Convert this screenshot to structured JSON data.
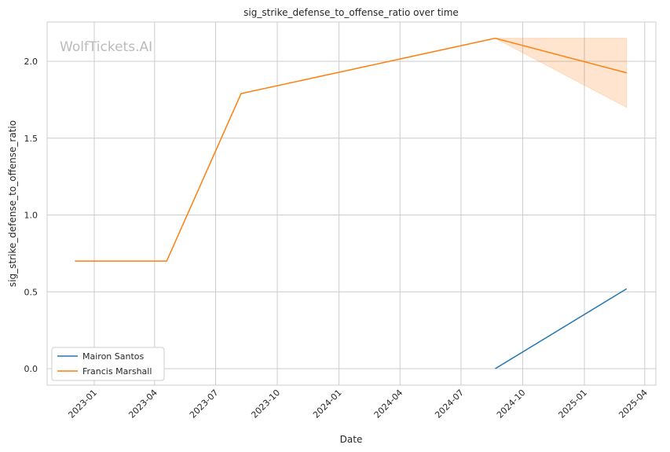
{
  "chart_data": {
    "type": "line",
    "title": "sig_strike_defense_to_offense_ratio over time",
    "xlabel": "Date",
    "ylabel": "sig_strike_defense_to_offense_ratio",
    "watermark": "WolfTickets.AI",
    "grid": true,
    "legend_placement": "lower-left",
    "xlim": [
      "2022-11-10",
      "2025-04-20"
    ],
    "ylim": [
      -0.11,
      2.26
    ],
    "x_ticks": [
      "2023-01",
      "2023-04",
      "2023-07",
      "2023-10",
      "2024-01",
      "2024-04",
      "2024-07",
      "2024-10",
      "2025-01",
      "2025-04"
    ],
    "y_ticks": [
      "0.0",
      "0.5",
      "1.0",
      "1.5",
      "2.0"
    ],
    "series": [
      {
        "name": "Mairon Santos",
        "color": "#1f77b4",
        "points": [
          {
            "x": "2024-08-21",
            "y": 0.0
          },
          {
            "x": "2025-03-05",
            "y": 0.52
          }
        ]
      },
      {
        "name": "Francis Marshall",
        "color": "#ff7f0e",
        "points": [
          {
            "x": "2022-12-03",
            "y": 0.7
          },
          {
            "x": "2023-04-19",
            "y": 0.7
          },
          {
            "x": "2023-08-08",
            "y": 1.79
          },
          {
            "x": "2024-08-21",
            "y": 2.15
          },
          {
            "x": "2025-03-05",
            "y": 1.925
          }
        ],
        "band": [
          {
            "x": "2024-08-21",
            "lo": 2.15,
            "hi": 2.15
          },
          {
            "x": "2025-03-05",
            "lo": 1.7,
            "hi": 2.15
          }
        ]
      }
    ]
  }
}
